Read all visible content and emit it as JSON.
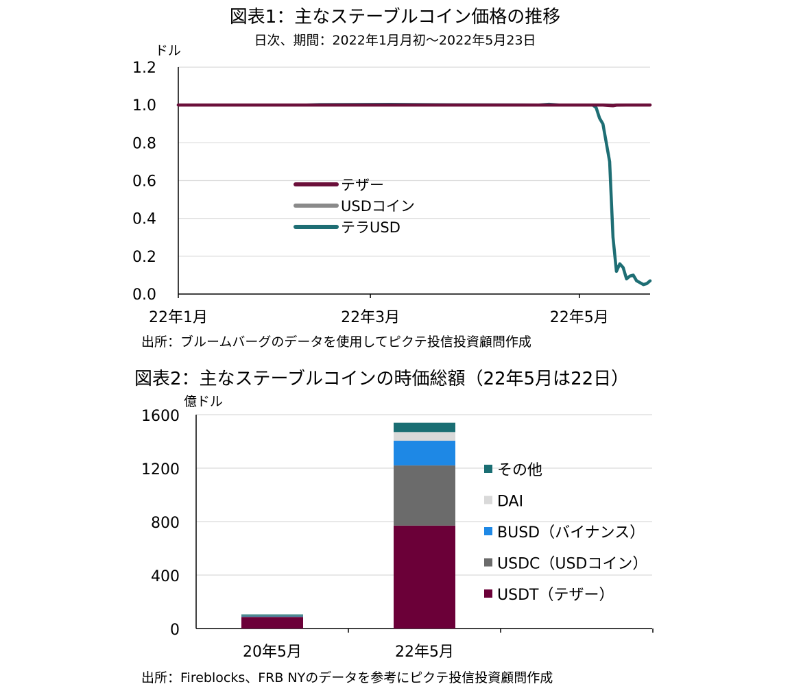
{
  "figure1": {
    "title": "図表1：主なステーブルコイン価格の推移",
    "subtitle": "日次、期間：2022年1月月初～2022年5月23日",
    "source": "出所：ブルームバーグのデータを使用してピクテ投信投資顧問作成"
  },
  "figure2": {
    "title": "図表2：主なステーブルコインの時価総額（22年5月は22日）",
    "source": "出所：Fireblocks、FRB NYのデータを参考にピクテ投信投資顧問作成"
  },
  "chart_data": [
    {
      "type": "line",
      "unit_label": "ドル",
      "ylim": [
        0,
        1.2
      ],
      "yticks": [
        "0.0",
        "0.2",
        "0.4",
        "0.6",
        "0.8",
        "1.0",
        "1.2"
      ],
      "xrange": [
        "2022-01-03",
        "2022-05-23"
      ],
      "xticks": [
        {
          "date": "2022-01-03",
          "label": "22年1月"
        },
        {
          "date": "2022-03-01",
          "label": "22年3月"
        },
        {
          "date": "2022-05-02",
          "label": "22年5月"
        }
      ],
      "grid": true,
      "legend_position": "center-left",
      "series": [
        {
          "name": "テザー",
          "color": "#6b0f3a",
          "points": [
            [
              "2022-01-03",
              1.0
            ],
            [
              "2022-05-09",
              1.0
            ],
            [
              "2022-05-12",
              0.996
            ],
            [
              "2022-05-13",
              0.999
            ],
            [
              "2022-05-16",
              1.0
            ],
            [
              "2022-05-23",
              1.0
            ]
          ]
        },
        {
          "name": "USDコイン",
          "color": "#8a8a8a",
          "points": [
            [
              "2022-01-03",
              1.0
            ],
            [
              "2022-05-23",
              1.0
            ]
          ]
        },
        {
          "name": "テラUSD",
          "color": "#1e6e74",
          "points": [
            [
              "2022-01-03",
              1.0
            ],
            [
              "2022-02-10",
              1.0
            ],
            [
              "2022-02-14",
              1.002
            ],
            [
              "2022-03-07",
              1.003
            ],
            [
              "2022-03-17",
              1.002
            ],
            [
              "2022-03-25",
              1.001
            ],
            [
              "2022-04-20",
              1.0
            ],
            [
              "2022-04-23",
              1.004
            ],
            [
              "2022-04-26",
              1.0
            ],
            [
              "2022-05-06",
              1.0
            ],
            [
              "2022-05-07",
              0.985
            ],
            [
              "2022-05-08",
              0.93
            ],
            [
              "2022-05-09",
              0.9
            ],
            [
              "2022-05-11",
              0.7
            ],
            [
              "2022-05-12",
              0.3
            ],
            [
              "2022-05-13",
              0.12
            ],
            [
              "2022-05-14",
              0.16
            ],
            [
              "2022-05-15",
              0.14
            ],
            [
              "2022-05-16",
              0.08
            ],
            [
              "2022-05-17",
              0.095
            ],
            [
              "2022-05-18",
              0.1
            ],
            [
              "2022-05-19",
              0.07
            ],
            [
              "2022-05-20",
              0.06
            ],
            [
              "2022-05-21",
              0.05
            ],
            [
              "2022-05-22",
              0.055
            ],
            [
              "2022-05-23",
              0.07
            ]
          ]
        }
      ]
    },
    {
      "type": "bar",
      "stacked": true,
      "unit_label": "億ドル",
      "ylim": [
        0,
        1600
      ],
      "yticks": [
        "0",
        "400",
        "800",
        "1200",
        "1600"
      ],
      "categories": [
        "20年5月",
        "22年5月"
      ],
      "legend_position": "right",
      "series": [
        {
          "name": "USDT（テザー）",
          "color": "#6b0038",
          "values": [
            86,
            770
          ]
        },
        {
          "name": "USDC（USDコイン）",
          "color": "#6b6b6b",
          "values": [
            6,
            450
          ]
        },
        {
          "name": "BUSD（バイナンス）",
          "color": "#1e88e5",
          "values": [
            1,
            185
          ]
        },
        {
          "name": "DAI",
          "color": "#d9d9d9",
          "values": [
            2,
            65
          ]
        },
        {
          "name": "その他",
          "color": "#1a6e73",
          "values": [
            10,
            70
          ]
        }
      ]
    }
  ]
}
